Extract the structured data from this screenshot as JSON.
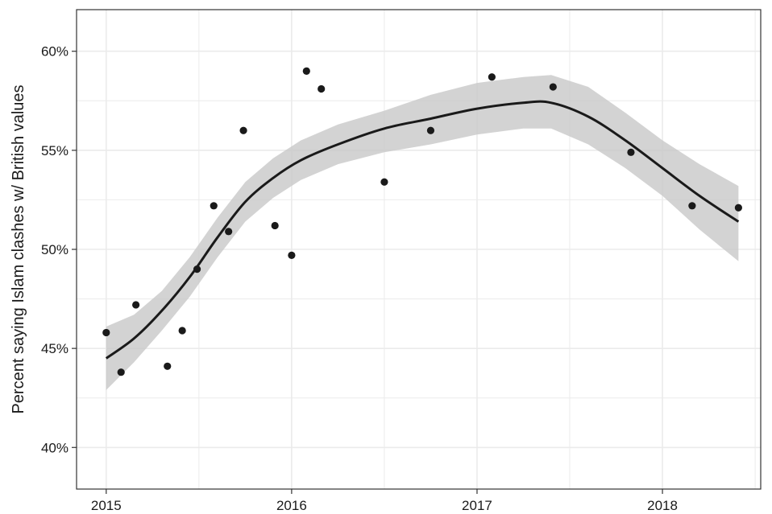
{
  "chart_data": {
    "type": "scatter",
    "title": "",
    "xlabel": "",
    "ylabel": "Percent saying Islam clashes w/ British values",
    "xlim": [
      2014.84,
      2018.53
    ],
    "ylim": [
      0.379,
      0.621
    ],
    "x_ticks": [
      {
        "value": 2015,
        "label": "2015"
      },
      {
        "value": 2016,
        "label": "2016"
      },
      {
        "value": 2017,
        "label": "2017"
      },
      {
        "value": 2018,
        "label": "2018"
      }
    ],
    "y_ticks": [
      {
        "value": 0.4,
        "label": "40%"
      },
      {
        "value": 0.45,
        "label": "45%"
      },
      {
        "value": 0.5,
        "label": "50%"
      },
      {
        "value": 0.55,
        "label": "55%"
      },
      {
        "value": 0.6,
        "label": "60%"
      }
    ],
    "grid": true,
    "legend": "none",
    "points": [
      {
        "x": 2015.0,
        "y": 0.458
      },
      {
        "x": 2015.08,
        "y": 0.438
      },
      {
        "x": 2015.16,
        "y": 0.472
      },
      {
        "x": 2015.33,
        "y": 0.441
      },
      {
        "x": 2015.41,
        "y": 0.459
      },
      {
        "x": 2015.49,
        "y": 0.49
      },
      {
        "x": 2015.58,
        "y": 0.522
      },
      {
        "x": 2015.66,
        "y": 0.509
      },
      {
        "x": 2015.74,
        "y": 0.56
      },
      {
        "x": 2015.91,
        "y": 0.512
      },
      {
        "x": 2016.0,
        "y": 0.497
      },
      {
        "x": 2016.08,
        "y": 0.59
      },
      {
        "x": 2016.16,
        "y": 0.581
      },
      {
        "x": 2016.5,
        "y": 0.534
      },
      {
        "x": 2016.75,
        "y": 0.56
      },
      {
        "x": 2017.08,
        "y": 0.587
      },
      {
        "x": 2017.41,
        "y": 0.582
      },
      {
        "x": 2017.83,
        "y": 0.549
      },
      {
        "x": 2018.16,
        "y": 0.522
      },
      {
        "x": 2018.41,
        "y": 0.521
      }
    ],
    "smooth": {
      "x": [
        2015.0,
        2015.15,
        2015.3,
        2015.45,
        2015.6,
        2015.75,
        2015.9,
        2016.05,
        2016.25,
        2016.5,
        2016.75,
        2017.0,
        2017.25,
        2017.4,
        2017.6,
        2017.8,
        2018.0,
        2018.2,
        2018.41
      ],
      "y": [
        0.445,
        0.455,
        0.469,
        0.486,
        0.506,
        0.524,
        0.536,
        0.545,
        0.553,
        0.561,
        0.566,
        0.571,
        0.574,
        0.574,
        0.567,
        0.555,
        0.541,
        0.527,
        0.514
      ],
      "lower": [
        0.429,
        0.443,
        0.459,
        0.476,
        0.496,
        0.514,
        0.526,
        0.535,
        0.543,
        0.549,
        0.553,
        0.558,
        0.561,
        0.561,
        0.553,
        0.541,
        0.527,
        0.51,
        0.494
      ],
      "upper": [
        0.461,
        0.467,
        0.479,
        0.496,
        0.516,
        0.534,
        0.546,
        0.555,
        0.563,
        0.57,
        0.578,
        0.584,
        0.587,
        0.588,
        0.582,
        0.569,
        0.555,
        0.543,
        0.532
      ]
    },
    "colors": {
      "point": "#1a1a1a",
      "line": "#1a1a1a",
      "ribbon": "#c8c8c8",
      "grid": "#ebebeb",
      "panel_border": "#333333"
    }
  }
}
